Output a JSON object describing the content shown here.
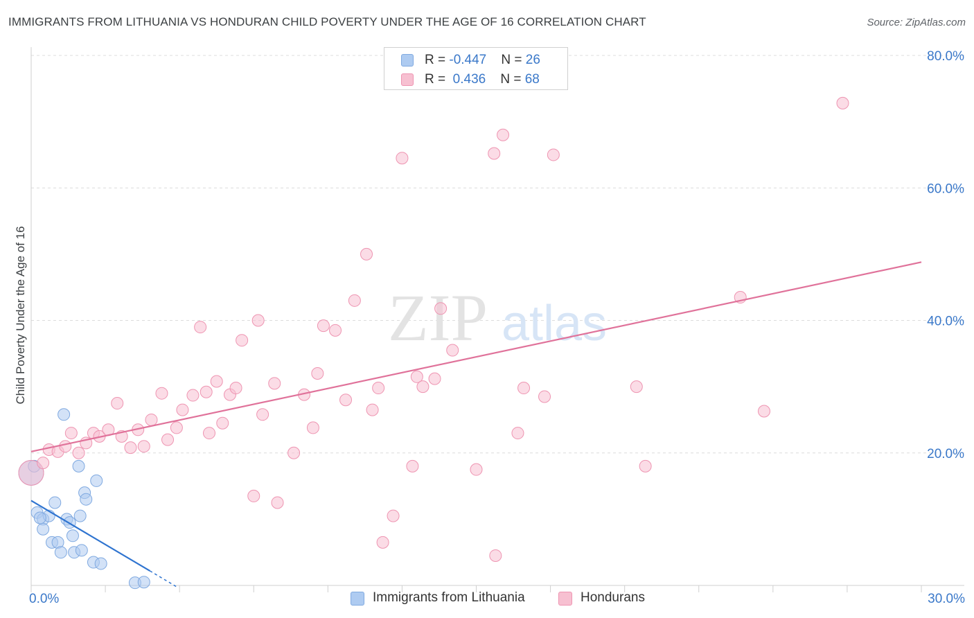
{
  "title": "IMMIGRANTS FROM LITHUANIA VS HONDURAN CHILD POVERTY UNDER THE AGE OF 16 CORRELATION CHART",
  "source": "Source: ZipAtlas.com",
  "watermark": {
    "zip": "ZIP",
    "atlas": "atlas"
  },
  "legend": {
    "rows": [
      {
        "r_label": "R = ",
        "r_value": "-0.447",
        "n_label": "N = ",
        "n_value": "26",
        "color": "#aecbf1",
        "border": "#7fa9e0"
      },
      {
        "r_label": "R = ",
        "r_value": " 0.436",
        "n_label": "N = ",
        "n_value": "68",
        "color": "#f7c0d1",
        "border": "#ee94b1"
      }
    ]
  },
  "bottom_legend": [
    {
      "label": "Immigrants from Lithuania",
      "color": "#aecbf1",
      "border": "#7fa9e0"
    },
    {
      "label": "Hondurans",
      "color": "#f7c0d1",
      "border": "#ee94b1"
    }
  ],
  "chart_data": {
    "type": "scatter",
    "title": "IMMIGRANTS FROM LITHUANIA VS HONDURAN CHILD POVERTY UNDER THE AGE OF 16 CORRELATION CHART",
    "xlabel": "",
    "ylabel": "Child Poverty Under the Age of 16",
    "xlim": [
      0,
      30
    ],
    "ylim": [
      0,
      80
    ],
    "x_tick_labels": [
      {
        "value": 0,
        "label": "0.0%"
      },
      {
        "value": 30,
        "label": "30.0%"
      }
    ],
    "y_tick_labels": [
      {
        "value": 20,
        "label": "20.0%"
      },
      {
        "value": 40,
        "label": "40.0%"
      },
      {
        "value": 60,
        "label": "60.0%"
      },
      {
        "value": 80,
        "label": "80.0%"
      }
    ],
    "series": [
      {
        "name": "Immigrants from Lithuania",
        "color": "#aecbf1",
        "stroke": "#7fa9e0",
        "line_color": "#2f74d0",
        "points": [
          [
            0.0,
            17.0,
            2
          ],
          [
            0.2,
            11.0,
            1
          ],
          [
            0.4,
            10.0,
            1
          ],
          [
            0.6,
            10.5,
            1
          ],
          [
            0.8,
            12.5,
            1
          ],
          [
            0.4,
            8.5,
            1
          ],
          [
            0.7,
            6.5,
            1
          ],
          [
            0.9,
            6.5,
            1
          ],
          [
            1.0,
            5.0,
            1
          ],
          [
            1.1,
            25.8,
            1
          ],
          [
            1.2,
            10.0,
            1
          ],
          [
            1.3,
            9.5,
            1
          ],
          [
            1.4,
            7.5,
            1
          ],
          [
            1.45,
            5.0,
            1
          ],
          [
            1.6,
            18.0,
            1
          ],
          [
            1.65,
            10.5,
            1
          ],
          [
            1.7,
            5.3,
            1
          ],
          [
            1.8,
            14.0,
            1
          ],
          [
            1.85,
            13.0,
            1
          ],
          [
            2.2,
            15.8,
            1
          ],
          [
            2.1,
            3.5,
            1
          ],
          [
            2.35,
            3.3,
            1
          ],
          [
            3.5,
            0.4,
            1
          ],
          [
            3.8,
            0.5,
            1
          ],
          [
            0.1,
            18.0,
            1
          ],
          [
            0.3,
            10.2,
            1
          ]
        ],
        "trend": {
          "x": [
            0,
            4.0
          ],
          "y": [
            12.8,
            2.2
          ],
          "dashed_to": {
            "x": 4.9,
            "y": -0.2
          }
        }
      },
      {
        "name": "Hondurans",
        "color": "#f7c0d1",
        "stroke": "#ee94b1",
        "line_color": "#e0729a",
        "points": [
          [
            0.0,
            17.0,
            2
          ],
          [
            0.4,
            18.5,
            1
          ],
          [
            0.6,
            20.5,
            1
          ],
          [
            0.9,
            20.2,
            1
          ],
          [
            1.15,
            21.0,
            1
          ],
          [
            1.35,
            23.0,
            1
          ],
          [
            1.6,
            20.0,
            1
          ],
          [
            1.85,
            21.5,
            1
          ],
          [
            2.1,
            23.0,
            1
          ],
          [
            2.3,
            22.5,
            1
          ],
          [
            2.6,
            23.5,
            1
          ],
          [
            2.9,
            27.5,
            1
          ],
          [
            3.05,
            22.5,
            1
          ],
          [
            3.35,
            20.8,
            1
          ],
          [
            3.6,
            23.5,
            1
          ],
          [
            3.8,
            21.0,
            1
          ],
          [
            4.05,
            25.0,
            1
          ],
          [
            4.4,
            29.0,
            1
          ],
          [
            4.6,
            22.0,
            1
          ],
          [
            4.9,
            23.8,
            1
          ],
          [
            5.1,
            26.5,
            1
          ],
          [
            5.45,
            28.7,
            1
          ],
          [
            5.7,
            39.0,
            1
          ],
          [
            5.9,
            29.2,
            1
          ],
          [
            6.0,
            23.0,
            1
          ],
          [
            6.25,
            30.8,
            1
          ],
          [
            6.45,
            24.5,
            1
          ],
          [
            6.7,
            28.8,
            1
          ],
          [
            6.9,
            29.8,
            1
          ],
          [
            7.1,
            37.0,
            1
          ],
          [
            7.5,
            13.5,
            1
          ],
          [
            7.65,
            40.0,
            1
          ],
          [
            7.8,
            25.8,
            1
          ],
          [
            8.2,
            30.5,
            1
          ],
          [
            8.3,
            12.5,
            1
          ],
          [
            8.85,
            20.0,
            1
          ],
          [
            9.2,
            28.8,
            1
          ],
          [
            9.5,
            23.8,
            1
          ],
          [
            9.65,
            32.0,
            1
          ],
          [
            9.85,
            39.2,
            1
          ],
          [
            10.25,
            38.5,
            1
          ],
          [
            10.6,
            28.0,
            1
          ],
          [
            10.9,
            43.0,
            1
          ],
          [
            11.3,
            50.0,
            1
          ],
          [
            11.5,
            26.5,
            1
          ],
          [
            11.7,
            29.8,
            1
          ],
          [
            11.85,
            6.5,
            1
          ],
          [
            12.2,
            10.5,
            1
          ],
          [
            12.5,
            64.5,
            1
          ],
          [
            12.85,
            18.0,
            1
          ],
          [
            13.0,
            31.5,
            1
          ],
          [
            13.2,
            30.0,
            1
          ],
          [
            13.6,
            31.2,
            1
          ],
          [
            13.8,
            41.8,
            1
          ],
          [
            14.2,
            35.5,
            1
          ],
          [
            15.0,
            17.5,
            1
          ],
          [
            15.6,
            65.2,
            1
          ],
          [
            15.65,
            4.5,
            1
          ],
          [
            15.9,
            68.0,
            1
          ],
          [
            16.4,
            23.0,
            1
          ],
          [
            16.6,
            29.8,
            1
          ],
          [
            17.3,
            28.5,
            1
          ],
          [
            17.6,
            65.0,
            1
          ],
          [
            20.4,
            30.0,
            1
          ],
          [
            20.7,
            18.0,
            1
          ],
          [
            23.9,
            43.5,
            1
          ],
          [
            24.7,
            26.3,
            1
          ],
          [
            27.35,
            72.8,
            1
          ]
        ],
        "trend": {
          "x": [
            0,
            30
          ],
          "y": [
            20.2,
            48.8
          ]
        }
      }
    ]
  }
}
